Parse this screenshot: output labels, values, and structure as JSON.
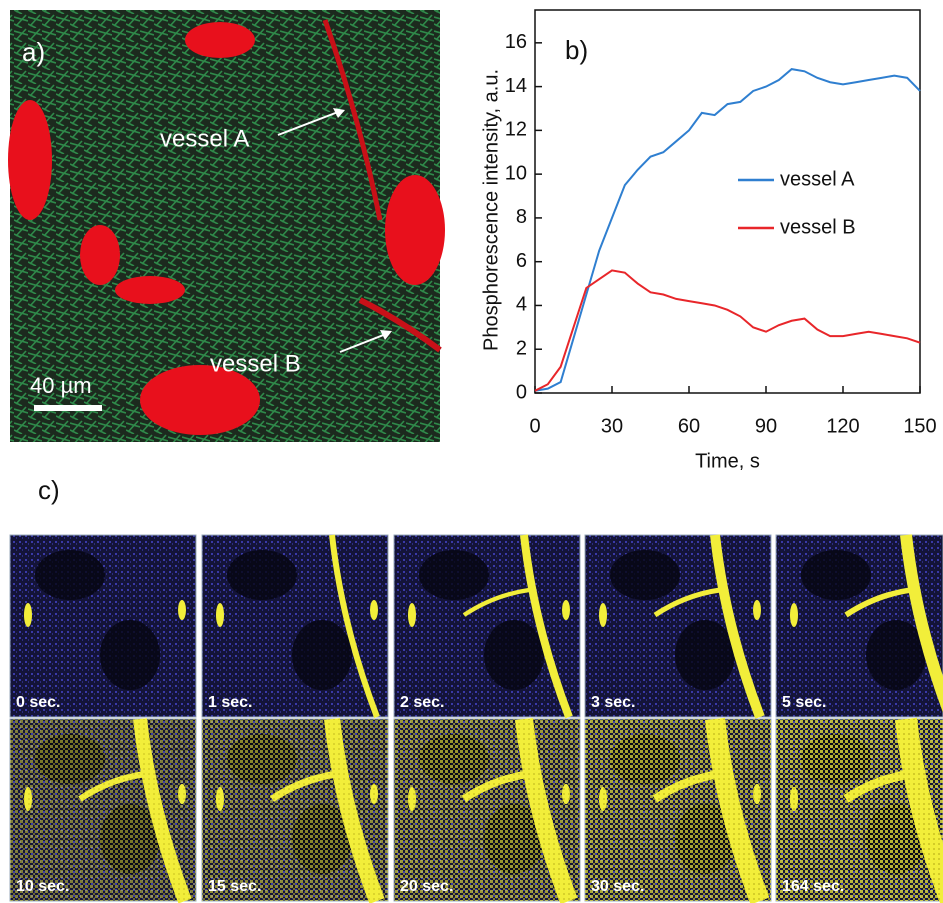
{
  "panel_a": {
    "label": "a)",
    "annotations": [
      "vessel A",
      "vessel B"
    ],
    "scale_bar": "40 µm"
  },
  "chart_data": {
    "type": "line",
    "label": "b)",
    "xlabel": "Time, s",
    "ylabel": "Phosphorescence intensity, a.u.",
    "x": [
      0,
      5,
      10,
      15,
      20,
      25,
      30,
      35,
      40,
      45,
      50,
      55,
      60,
      65,
      70,
      75,
      80,
      85,
      90,
      95,
      100,
      105,
      110,
      115,
      120,
      125,
      130,
      135,
      140,
      145,
      150
    ],
    "series": [
      {
        "name": "vessel A",
        "color": "#2f7fd0",
        "values": [
          0.1,
          0.2,
          0.5,
          2.5,
          4.5,
          6.5,
          8,
          9.5,
          10.2,
          10.8,
          11,
          11.5,
          12,
          12.8,
          12.7,
          13.2,
          13.3,
          13.8,
          14,
          14.3,
          14.8,
          14.7,
          14.4,
          14.2,
          14.1,
          14.2,
          14.3,
          14.4,
          14.5,
          14.4,
          13.8
        ]
      },
      {
        "name": "vessel B",
        "color": "#e8262a",
        "values": [
          0.1,
          0.4,
          1.2,
          3,
          4.8,
          5.2,
          5.6,
          5.5,
          5,
          4.6,
          4.5,
          4.3,
          4.2,
          4.1,
          4,
          3.8,
          3.5,
          3,
          2.8,
          3.1,
          3.3,
          3.4,
          2.9,
          2.6,
          2.6,
          2.7,
          2.8,
          2.7,
          2.6,
          2.5,
          2.3
        ]
      }
    ],
    "xlim": [
      0,
      150
    ],
    "xticks": [
      0,
      30,
      60,
      90,
      120,
      150
    ],
    "ylim": [
      0,
      17.5
    ],
    "yticks": [
      0,
      2,
      4,
      6,
      8,
      10,
      12,
      14,
      16
    ]
  },
  "panel_c": {
    "label": "c)",
    "frames": [
      "0 sec.",
      "1 sec.",
      "2 sec.",
      "3 sec.",
      "5 sec.",
      "10 sec.",
      "15 sec.",
      "20 sec.",
      "30 sec.",
      "164 sec."
    ]
  }
}
